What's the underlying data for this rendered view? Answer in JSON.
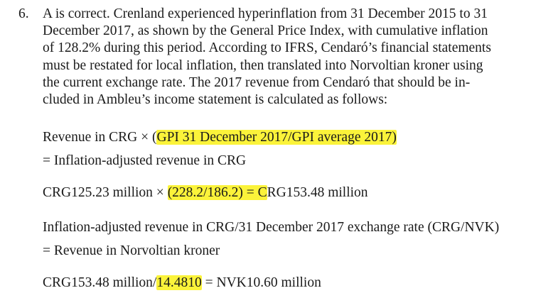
{
  "answer": {
    "number": "6.",
    "paragraph_lines": [
      "A is correct. Crenland experienced hyperinflation from 31 December 2015 to 31",
      "December 2017, as shown by the General Price Index, with cumulative inflation",
      "of 128.2% during this period. According to IFRS, Cendaró’s financial statements",
      "must be restated for local inflation, then translated into Norvoltian kroner using",
      "the current exchange rate. The 2017 revenue from Cendaró that should be in-",
      "cluded in Ambleu’s income statement is calculated as follows:"
    ]
  },
  "formula1": {
    "prefix": "Revenue in CRG × (",
    "highlight": "GPI 31 December 2017/GPI average 2017)",
    "line2": "= Inflation-adjusted revenue in CRG"
  },
  "calc1": {
    "prefix": "CRG125.23 million × ",
    "highlight": "(228.2/186.2) = C",
    "suffix": "RG153.48 million"
  },
  "formula2": {
    "line1": "Inflation-adjusted revenue in CRG/31 December 2017 exchange rate (CRG/NVK)",
    "line2": "= Revenue in Norvoltian kroner"
  },
  "calc2": {
    "prefix": "CRG153.48 million/",
    "highlight": "14.4810",
    "suffix": " = NVK10.60 million"
  },
  "colors": {
    "highlight": "#fbf33a",
    "text": "#1a1a1a"
  }
}
